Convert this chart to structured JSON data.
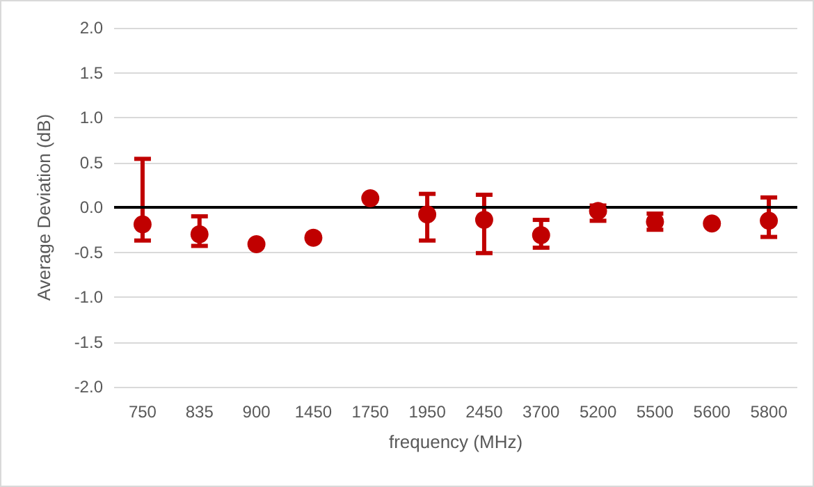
{
  "chart_data": {
    "type": "scatter",
    "xlabel": "frequency (MHz)",
    "ylabel": "Average Deviation (dB)",
    "categories": [
      "750",
      "835",
      "900",
      "1450",
      "1750",
      "1950",
      "2450",
      "3700",
      "5200",
      "5500",
      "5600",
      "5800"
    ],
    "series": [
      {
        "color": "#c00000",
        "values": [
          -0.19,
          -0.3,
          -0.41,
          -0.34,
          0.1,
          -0.08,
          -0.14,
          -0.31,
          -0.04,
          -0.16,
          -0.18,
          -0.15
        ],
        "errors": [
          [
            -0.37,
            0.54
          ],
          [
            -0.43,
            -0.1
          ],
          null,
          null,
          null,
          [
            -0.37,
            0.15
          ],
          [
            -0.51,
            0.14
          ],
          [
            -0.45,
            -0.14
          ],
          [
            -0.15,
            0.02
          ],
          [
            -0.25,
            -0.07
          ],
          null,
          [
            -0.33,
            0.11
          ]
        ]
      }
    ],
    "ylim": [
      -2,
      2
    ],
    "yticks": [
      {
        "value": -2,
        "label": "-2.0"
      },
      {
        "value": -1.5,
        "label": "-1.5"
      },
      {
        "value": -1,
        "label": "-1.0"
      },
      {
        "value": -0.5,
        "label": "-0.5"
      },
      {
        "value": 0,
        "label": "0.0"
      },
      {
        "value": 0.5,
        "label": "0.5"
      },
      {
        "value": 1,
        "label": "1.0"
      },
      {
        "value": 1.5,
        "label": "1.5"
      },
      {
        "value": 2,
        "label": "2.0"
      }
    ],
    "grid": "y",
    "marker": "circle",
    "ref_lines": [
      {
        "axis": "y",
        "value": 0,
        "color": "#000000"
      }
    ]
  }
}
